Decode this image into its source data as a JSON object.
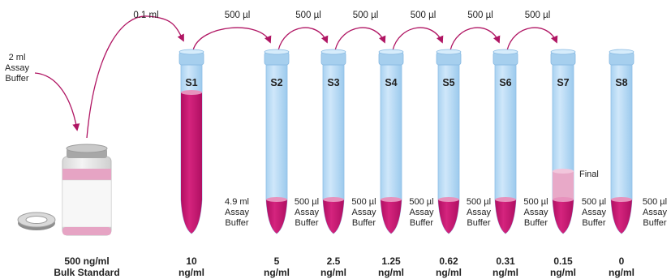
{
  "colors": {
    "tube_fill": "#b9dcf6",
    "tube_rim": "#a6cfee",
    "tube_shade": "#96c4ea",
    "liquid": "#c4136d",
    "liquid_light": "#e8a9c8",
    "arrow": "#b01563",
    "text": "#222222"
  },
  "stock": {
    "concentration": "500 ng/ml",
    "name": "Bulk Standard",
    "add_label": [
      "2 ml",
      "Assay",
      "Buffer"
    ]
  },
  "transfers": [
    "0.1 ml",
    "500 µl",
    "500 µl",
    "500 µl",
    "500 µl",
    "500 µl",
    "500 µl"
  ],
  "tubes": [
    {
      "label": "S1",
      "conc": "10",
      "unit": "ng/ml",
      "buffer": [
        "4.9 ml",
        "Assay",
        "Buffer"
      ],
      "fill": "full"
    },
    {
      "label": "S2",
      "conc": "5",
      "unit": "ng/ml",
      "buffer": [
        "500 µl",
        "Assay",
        "Buffer"
      ],
      "fill": "tip"
    },
    {
      "label": "S3",
      "conc": "2.5",
      "unit": "ng/ml",
      "buffer": [
        "500 µl",
        "Assay",
        "Buffer"
      ],
      "fill": "tip"
    },
    {
      "label": "S4",
      "conc": "1.25",
      "unit": "ng/ml",
      "buffer": [
        "500 µl",
        "Assay",
        "Buffer"
      ],
      "fill": "tip"
    },
    {
      "label": "S5",
      "conc": "0.62",
      "unit": "ng/ml",
      "buffer": [
        "500 µl",
        "Assay",
        "Buffer"
      ],
      "fill": "tip"
    },
    {
      "label": "S6",
      "conc": "0.31",
      "unit": "ng/ml",
      "buffer": [
        "500 µl",
        "Assay",
        "Buffer"
      ],
      "fill": "tip"
    },
    {
      "label": "S7",
      "conc": "0.15",
      "unit": "ng/ml",
      "buffer": [
        "500 µl",
        "Assay",
        "Buffer"
      ],
      "fill": "final",
      "final_label": "Final"
    },
    {
      "label": "S8",
      "conc": "0",
      "unit": "ng/ml",
      "buffer": [],
      "fill": "tip"
    }
  ],
  "trailing_buffer": [
    "500 µl",
    "Assay",
    "Buffer"
  ]
}
